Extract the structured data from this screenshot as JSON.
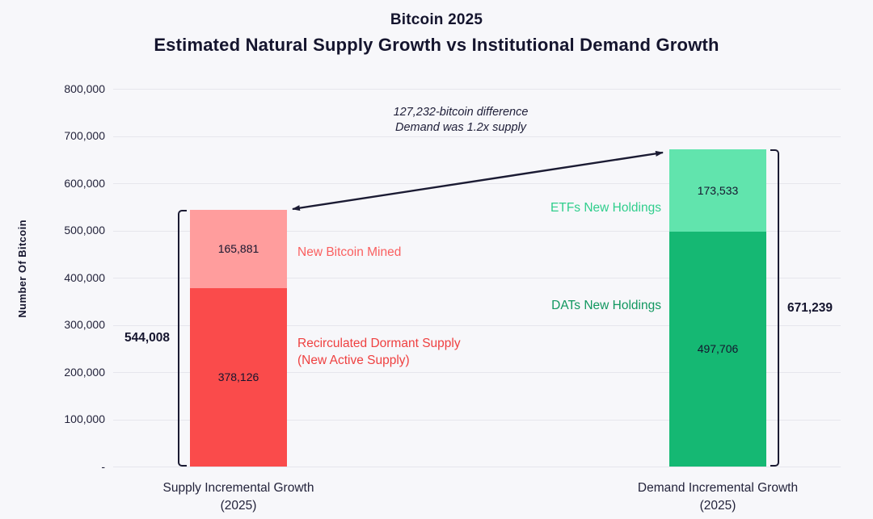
{
  "title": {
    "line1": "Bitcoin 2025",
    "line2": "Estimated Natural Supply Growth vs Institutional Demand Growth"
  },
  "annotation": {
    "line1": "127,232-bitcoin difference",
    "line2": "Demand was 1.2x supply"
  },
  "chart_data": {
    "type": "bar",
    "stacked": true,
    "title": "Bitcoin 2025 — Estimated Natural Supply Growth vs Institutional Demand Growth",
    "ylabel": "Number Of Bitcoin",
    "ylim": [
      0,
      800000
    ],
    "ytick_step": 100000,
    "ytick_labels": [
      "800,000",
      "700,000",
      "600,000",
      "500,000",
      "400,000",
      "300,000",
      "200,000",
      "100,000",
      "-"
    ],
    "grid": true,
    "legend_position": "none",
    "bars": [
      {
        "category_line1": "Supply Incremental Growth",
        "category_line2": "(2025)",
        "total": 544008,
        "total_label": "544,008",
        "segments": [
          {
            "name": "Recirculated Dormant Supply (New Active Supply)",
            "value": 378126,
            "value_label": "378,126",
            "color": "#fa4b4b",
            "label_line1": "Recirculated Dormant Supply",
            "label_line2": "(New Active Supply)",
            "label_color": "#ef4040"
          },
          {
            "name": "New Bitcoin Mined",
            "value": 165881,
            "value_label": "165,881",
            "color": "#ff9d9d",
            "label_line1": "New Bitcoin Mined",
            "label_line2": "",
            "label_color": "#fa5f5f"
          }
        ]
      },
      {
        "category_line1": "Demand Incremental Growth",
        "category_line2": "(2025)",
        "total": 671239,
        "total_label": "671,239",
        "segments": [
          {
            "name": "DATs New Holdings",
            "value": 497706,
            "value_label": "497,706",
            "color": "#15b873",
            "label_line1": "DATs New Holdings",
            "label_line2": "",
            "label_color": "#11975f"
          },
          {
            "name": "ETFs New Holdings",
            "value": 173533,
            "value_label": "173,533",
            "color": "#61e4ad",
            "label_line1": "ETFs New Holdings",
            "label_line2": "",
            "label_color": "#2fce8c"
          }
        ]
      }
    ],
    "arrow_color": "#1b1b33"
  }
}
